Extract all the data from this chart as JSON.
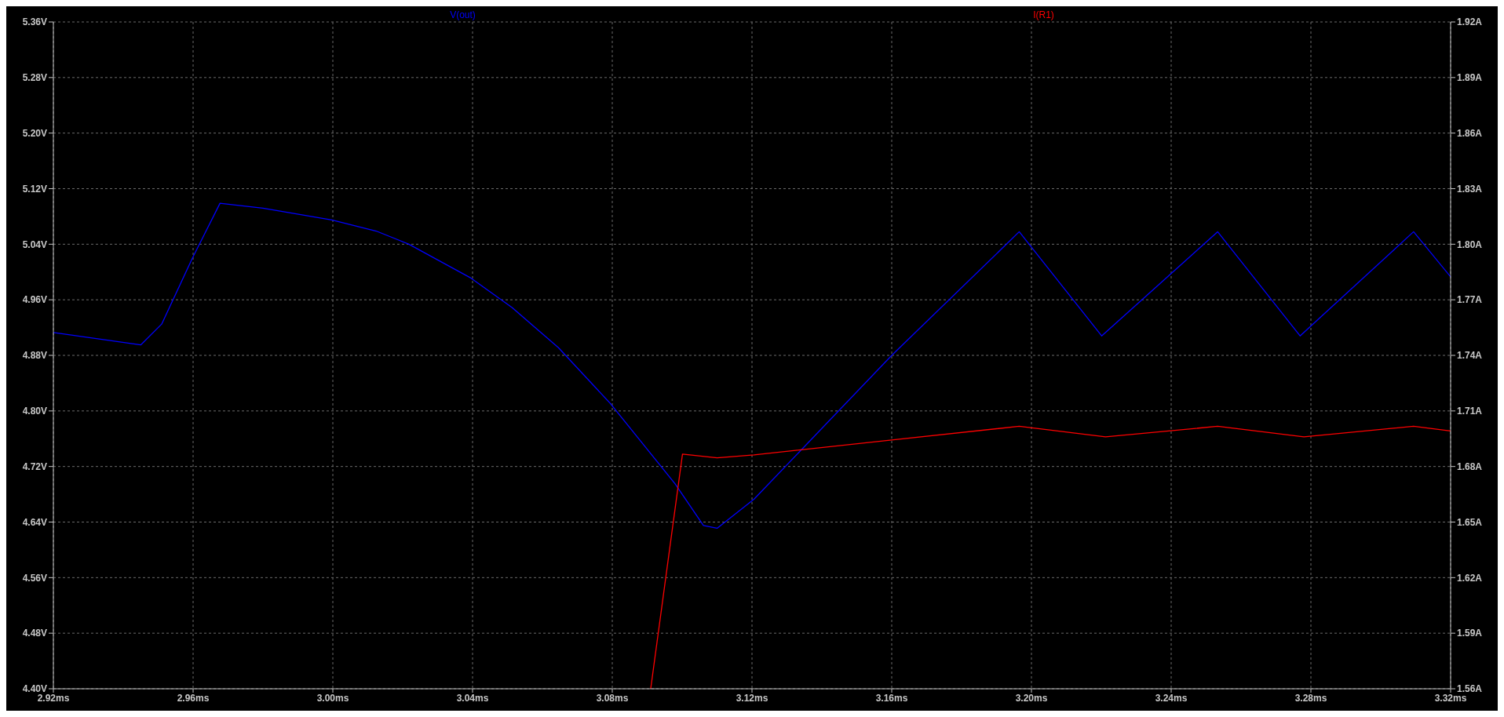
{
  "chart_data": {
    "type": "line",
    "xlim": [
      2.92,
      3.32
    ],
    "xticks": [
      {
        "value": 2.92,
        "label": "2.92ms"
      },
      {
        "value": 2.96,
        "label": "2.96ms"
      },
      {
        "value": 3.0,
        "label": "3.00ms"
      },
      {
        "value": 3.04,
        "label": "3.04ms"
      },
      {
        "value": 3.08,
        "label": "3.08ms"
      },
      {
        "value": 3.12,
        "label": "3.12ms"
      },
      {
        "value": 3.16,
        "label": "3.16ms"
      },
      {
        "value": 3.2,
        "label": "3.20ms"
      },
      {
        "value": 3.24,
        "label": "3.24ms"
      },
      {
        "value": 3.28,
        "label": "3.28ms"
      },
      {
        "value": 3.32,
        "label": "3.32ms"
      }
    ],
    "ylim": [
      4.4,
      5.36
    ],
    "yticks": [
      {
        "value": 4.4,
        "label": "4.40V"
      },
      {
        "value": 4.48,
        "label": "4.48V"
      },
      {
        "value": 4.56,
        "label": "4.56V"
      },
      {
        "value": 4.64,
        "label": "4.64V"
      },
      {
        "value": 4.72,
        "label": "4.72V"
      },
      {
        "value": 4.8,
        "label": "4.80V"
      },
      {
        "value": 4.88,
        "label": "4.88V"
      },
      {
        "value": 4.96,
        "label": "4.96V"
      },
      {
        "value": 5.04,
        "label": "5.04V"
      },
      {
        "value": 5.12,
        "label": "5.12V"
      },
      {
        "value": 5.2,
        "label": "5.20V"
      },
      {
        "value": 5.28,
        "label": "5.28V"
      },
      {
        "value": 5.36,
        "label": "5.36V"
      }
    ],
    "y2lim": [
      1.56,
      1.92
    ],
    "y2ticks": [
      {
        "value": 1.56,
        "label": "1.56A"
      },
      {
        "value": 1.59,
        "label": "1.59A"
      },
      {
        "value": 1.62,
        "label": "1.62A"
      },
      {
        "value": 1.65,
        "label": "1.65A"
      },
      {
        "value": 1.68,
        "label": "1.68A"
      },
      {
        "value": 1.71,
        "label": "1.71A"
      },
      {
        "value": 1.74,
        "label": "1.74A"
      },
      {
        "value": 1.77,
        "label": "1.77A"
      },
      {
        "value": 1.8,
        "label": "1.80A"
      },
      {
        "value": 1.83,
        "label": "1.83A"
      },
      {
        "value": 1.86,
        "label": "1.86A"
      },
      {
        "value": 1.89,
        "label": "1.89A"
      },
      {
        "value": 1.92,
        "label": "1.92A"
      }
    ],
    "grid": true,
    "legend": "top",
    "series": [
      {
        "name": "V(out)",
        "color": "#0000ff",
        "x": [
          2.92,
          2.945,
          2.951,
          2.9597,
          2.9677,
          2.98,
          2.9997,
          3.0124,
          3.0218,
          3.0393,
          3.0513,
          3.0646,
          3.0794,
          3.098,
          3.1061,
          3.11,
          3.1206,
          3.16,
          3.1965,
          3.2201,
          3.2533,
          3.2769,
          3.3094,
          3.32
        ],
        "values": [
          4.913,
          4.895,
          4.925,
          5.019,
          5.099,
          5.092,
          5.075,
          5.059,
          5.04,
          4.992,
          4.949,
          4.891,
          4.811,
          4.695,
          4.635,
          4.631,
          4.673,
          4.88,
          5.058,
          4.908,
          5.058,
          4.908,
          5.058,
          4.993
        ]
      },
      {
        "name": "I(R1)",
        "color": "#ff0000",
        "axis": "y2",
        "x": [
          3.091,
          3.096,
          3.1001,
          3.11,
          3.1206,
          3.16,
          3.1965,
          3.2212,
          3.2533,
          3.278,
          3.3094,
          3.32
        ],
        "values": [
          1.56,
          1.6296,
          1.6867,
          1.6847,
          1.6863,
          1.6943,
          1.7017,
          1.696,
          1.7017,
          1.696,
          1.7017,
          1.6992
        ]
      }
    ]
  }
}
